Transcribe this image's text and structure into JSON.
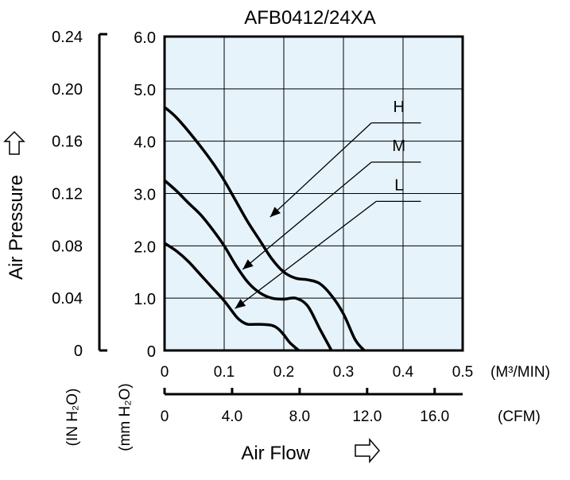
{
  "chart_data": {
    "type": "line",
    "title": "AFB0412/24XA",
    "xlabel": "Air Flow",
    "ylabel": "Air Pressure",
    "x_unit_primary": "(M³/MIN)",
    "x_unit_secondary": "(CFM)",
    "y_unit_primary": "(mm H₂O)",
    "y_unit_secondary": "(IN H₂O)",
    "xlim": [
      0,
      0.5
    ],
    "ylim": [
      0,
      6.0
    ],
    "x_ticks": [
      "0",
      "0.1",
      "0.2",
      "0.3",
      "0.4",
      "0.5"
    ],
    "x_ticks_cfm": [
      "0",
      "4.0",
      "8.0",
      "12.0",
      "16.0"
    ],
    "y_ticks_mm": [
      "0",
      "1.0",
      "2.0",
      "3.0",
      "4.0",
      "5.0",
      "6.0"
    ],
    "y_ticks_in": [
      "0",
      "0.04",
      "0.08",
      "0.12",
      "0.16",
      "0.20",
      "0.24"
    ],
    "grid": true,
    "plot_background": "#e6f3fb",
    "series": [
      {
        "name": "H",
        "x": [
          0,
          0.02,
          0.05,
          0.08,
          0.1,
          0.12,
          0.14,
          0.16,
          0.18,
          0.2,
          0.22,
          0.24,
          0.26,
          0.28,
          0.3,
          0.32,
          0.335
        ],
        "y": [
          4.65,
          4.45,
          4.05,
          3.6,
          3.25,
          2.85,
          2.45,
          2.1,
          1.75,
          1.5,
          1.38,
          1.35,
          1.28,
          1.05,
          0.7,
          0.2,
          0.0
        ]
      },
      {
        "name": "M",
        "x": [
          0,
          0.02,
          0.04,
          0.06,
          0.08,
          0.1,
          0.12,
          0.14,
          0.16,
          0.18,
          0.2,
          0.22,
          0.24,
          0.26,
          0.28
        ],
        "y": [
          3.25,
          3.05,
          2.82,
          2.6,
          2.32,
          2.0,
          1.62,
          1.3,
          1.1,
          1.0,
          0.98,
          1.0,
          0.85,
          0.42,
          0.0
        ]
      },
      {
        "name": "L",
        "x": [
          0,
          0.02,
          0.04,
          0.06,
          0.08,
          0.1,
          0.12,
          0.13,
          0.14,
          0.16,
          0.18,
          0.19,
          0.2,
          0.21,
          0.225
        ],
        "y": [
          2.05,
          1.9,
          1.7,
          1.45,
          1.2,
          0.95,
          0.65,
          0.55,
          0.5,
          0.5,
          0.48,
          0.42,
          0.3,
          0.15,
          0.0
        ]
      }
    ]
  }
}
